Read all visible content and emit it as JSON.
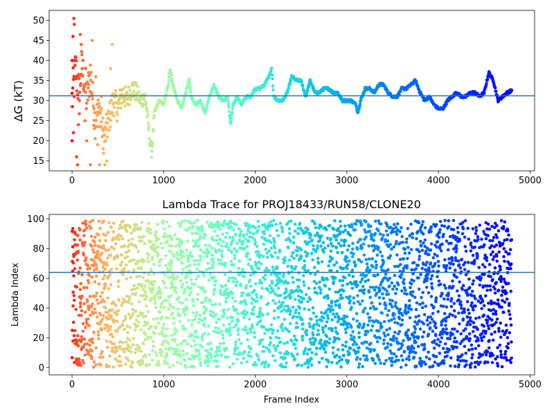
{
  "chart_data": [
    {
      "type": "scatter",
      "title": "",
      "xlabel": "",
      "ylabel": "ΔG (kT)",
      "xlim": [
        -250,
        5050
      ],
      "ylim": [
        12.5,
        52.5
      ],
      "xticks": [
        0,
        1000,
        2000,
        3000,
        4000,
        5000
      ],
      "yticks": [
        15,
        20,
        25,
        30,
        35,
        40,
        45,
        50
      ],
      "hline": 31.2,
      "hline_color": "#1f77b4",
      "colormap": "rainbow (red at frame 0 → purple at last frame)",
      "grid": false,
      "legend": "none",
      "x_range": [
        0,
        4800
      ],
      "trace_waypoints": {
        "x": [
          0,
          40,
          80,
          100,
          130,
          160,
          200,
          250,
          300,
          350,
          400,
          450,
          500,
          550,
          600,
          650,
          700,
          750,
          800,
          850,
          870,
          900,
          950,
          1000,
          1050,
          1070,
          1100,
          1150,
          1200,
          1250,
          1280,
          1300,
          1350,
          1400,
          1450,
          1500,
          1550,
          1600,
          1650,
          1700,
          1730,
          1760,
          1800,
          1850,
          1900,
          1950,
          2000,
          2050,
          2100,
          2150,
          2180,
          2200,
          2250,
          2300,
          2350,
          2400,
          2450,
          2500,
          2550,
          2600,
          2650,
          2700,
          2750,
          2800,
          2850,
          2900,
          2950,
          3000,
          3050,
          3100,
          3120,
          3150,
          3200,
          3250,
          3300,
          3350,
          3400,
          3450,
          3500,
          3550,
          3600,
          3650,
          3700,
          3750,
          3800,
          3850,
          3900,
          3950,
          4000,
          4050,
          4100,
          4150,
          4200,
          4250,
          4300,
          4350,
          4400,
          4450,
          4500,
          4550,
          4600,
          4650,
          4700,
          4750,
          4800
        ],
        "y": [
          30,
          38,
          31,
          38,
          36,
          30,
          37,
          25,
          28,
          20,
          25,
          30,
          28,
          32,
          30,
          33,
          32,
          30,
          31,
          20,
          17,
          27,
          30,
          29,
          34,
          38,
          34,
          30,
          28,
          33,
          35,
          31,
          29,
          30,
          27,
          31,
          34,
          31,
          30,
          31,
          24,
          29,
          31,
          29,
          31,
          31,
          33,
          33,
          34,
          36,
          38,
          31,
          30,
          30,
          32,
          36,
          35,
          35,
          31,
          35,
          32,
          32,
          33,
          33,
          32,
          32,
          30,
          30,
          30,
          29,
          27,
          30,
          33,
          33,
          32,
          34,
          34,
          32,
          31,
          31,
          33,
          33,
          34,
          35,
          32,
          30,
          31,
          29,
          28,
          28,
          30,
          31,
          32,
          31,
          31,
          32,
          32,
          31,
          32,
          37,
          35,
          30,
          31,
          32,
          32.5
        ]
      },
      "early_outliers": {
        "x": [
          0,
          0,
          10,
          15,
          20,
          25,
          40,
          50,
          60,
          70,
          80,
          90,
          100,
          110,
          120,
          140,
          150,
          160,
          180,
          200,
          220,
          240,
          260,
          280,
          300,
          320,
          340,
          360,
          380,
          420,
          430,
          440
        ],
        "y": [
          40,
          20,
          46,
          22,
          50.5,
          49,
          36,
          16,
          14,
          24,
          30,
          46.5,
          44,
          38,
          40,
          25,
          38,
          20,
          34,
          14,
          45,
          28,
          36,
          19,
          14,
          31,
          18,
          14,
          15,
          38,
          27,
          44
        ]
      }
    },
    {
      "type": "scatter",
      "title": "Lambda Trace for PROJ18433/RUN58/CLONE20",
      "xlabel": "Frame Index",
      "ylabel": "Lambda Index",
      "xlim": [
        -250,
        5050
      ],
      "ylim": [
        -5,
        103
      ],
      "xticks": [
        0,
        1000,
        2000,
        3000,
        4000,
        5000
      ],
      "yticks": [
        0,
        20,
        40,
        60,
        80,
        100
      ],
      "hline": 64,
      "hline_color": "#1f77b4",
      "colormap": "rainbow (red at frame 0 → purple at last frame)",
      "grid": false,
      "legend": "none",
      "x_range": [
        0,
        4800
      ],
      "value_range": [
        0,
        99
      ]
    }
  ]
}
